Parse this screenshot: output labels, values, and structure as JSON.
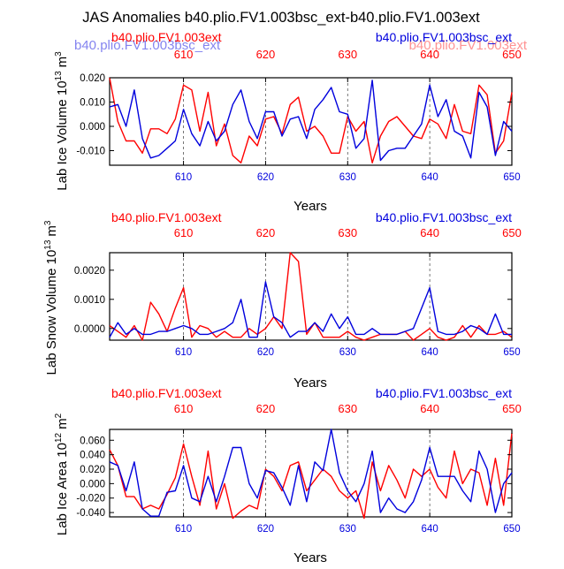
{
  "page_title": "JAS Anomalies b40.plio.FV1.003bsc_ext-b40.plio.FV1.003ext",
  "overlay_ghost_left": "b40.plio.FV1.003bsc_ext",
  "overlay_ghost_right": "b40.plio.FV1.003ext",
  "colors": {
    "red": "#ff0000",
    "blue": "#0000dd",
    "ghost_blue": "#7777ee",
    "ghost_red": "#ff8888"
  },
  "chart_data": [
    {
      "type": "line",
      "ylabel": "Lab Ice Volume 10^13 m^3",
      "ylabel_main": "Lab Ice Volume 10",
      "ylabel_exp": "13",
      "ylabel_unit": "m",
      "ylabel_unit_exp": "3",
      "xlabel": "Years",
      "xlim": [
        601,
        650
      ],
      "ylim": [
        -0.016,
        0.02
      ],
      "yticks": [
        -0.01,
        0.0,
        0.01,
        0.02
      ],
      "ytick_labels": [
        "-0.010",
        "0.000",
        "0.010",
        "0.020"
      ],
      "xticks": [
        610,
        620,
        630,
        640,
        650
      ],
      "xtick_labels": [
        "610",
        "620",
        "630",
        "640",
        "650"
      ],
      "vlines": [
        610,
        620,
        630,
        640
      ],
      "legend_left": "b40.plio.FV1.003ext",
      "legend_right": "b40.plio.FV1.003bsc_ext",
      "series": [
        {
          "name": "b40.plio.FV1.003ext",
          "color": "#ff0000",
          "x": [
            601,
            602,
            603,
            604,
            605,
            606,
            607,
            608,
            609,
            610,
            611,
            612,
            613,
            614,
            615,
            616,
            617,
            618,
            619,
            620,
            621,
            622,
            623,
            624,
            625,
            626,
            627,
            628,
            629,
            630,
            631,
            632,
            633,
            634,
            635,
            636,
            637,
            638,
            639,
            640,
            641,
            642,
            643,
            644,
            645,
            646,
            647,
            648,
            649,
            650
          ],
          "values": [
            0.02,
            0.002,
            -0.006,
            -0.006,
            -0.011,
            -0.001,
            -0.001,
            -0.003,
            0.003,
            0.017,
            0.015,
            -0.002,
            0.014,
            -0.008,
            0.001,
            -0.012,
            -0.015,
            -0.004,
            -0.008,
            0.003,
            0.004,
            -0.003,
            0.009,
            0.012,
            -0.002,
            0.0,
            -0.004,
            -0.011,
            -0.011,
            0.004,
            -0.002,
            0.002,
            -0.015,
            -0.004,
            0.002,
            0.004,
            0.0,
            -0.004,
            -0.005,
            0.003,
            0.001,
            -0.005,
            0.009,
            -0.002,
            -0.003,
            0.017,
            0.013,
            -0.011,
            -0.006,
            0.014
          ]
        },
        {
          "name": "b40.plio.FV1.003bsc_ext",
          "color": "#0000dd",
          "x": [
            601,
            602,
            603,
            604,
            605,
            606,
            607,
            608,
            609,
            610,
            611,
            612,
            613,
            614,
            615,
            616,
            617,
            618,
            619,
            620,
            621,
            622,
            623,
            624,
            625,
            626,
            627,
            628,
            629,
            630,
            631,
            632,
            633,
            634,
            635,
            636,
            637,
            638,
            639,
            640,
            641,
            642,
            643,
            644,
            645,
            646,
            647,
            648,
            649,
            650
          ],
          "values": [
            0.008,
            0.009,
            0.0,
            0.015,
            -0.005,
            -0.013,
            -0.012,
            -0.009,
            -0.006,
            0.007,
            -0.003,
            -0.008,
            0.002,
            -0.006,
            -0.002,
            0.009,
            0.015,
            0.002,
            -0.005,
            0.006,
            0.006,
            -0.004,
            0.003,
            0.004,
            -0.005,
            0.007,
            0.011,
            0.016,
            0.006,
            0.005,
            -0.009,
            -0.005,
            0.019,
            -0.014,
            -0.01,
            -0.009,
            -0.009,
            -0.004,
            0.001,
            0.017,
            0.004,
            0.011,
            -0.002,
            -0.004,
            -0.013,
            0.014,
            0.008,
            -0.012,
            0.002,
            -0.002
          ]
        }
      ]
    },
    {
      "type": "line",
      "ylabel": "Lab Snow Volume 10^13 m^3",
      "ylabel_main": "Lab Snow Volume 10",
      "ylabel_exp": "13",
      "ylabel_unit": "m",
      "ylabel_unit_exp": "3",
      "xlabel": "Years",
      "xlim": [
        601,
        650
      ],
      "ylim": [
        -0.0004,
        0.0026
      ],
      "yticks": [
        0.0,
        0.001,
        0.002
      ],
      "ytick_labels": [
        "0.0000",
        "0.0010",
        "0.0020"
      ],
      "xticks": [
        610,
        620,
        630,
        640,
        650
      ],
      "xtick_labels": [
        "610",
        "620",
        "630",
        "640",
        "650"
      ],
      "vlines": [
        610,
        620,
        630,
        640
      ],
      "legend_left": "b40.plio.FV1.003ext",
      "legend_right": "b40.plio.FV1.003bsc_ext",
      "series": [
        {
          "name": "b40.plio.FV1.003ext",
          "color": "#ff0000",
          "x": [
            601,
            602,
            603,
            604,
            605,
            606,
            607,
            608,
            609,
            610,
            611,
            612,
            613,
            614,
            615,
            616,
            617,
            618,
            619,
            620,
            621,
            622,
            623,
            624,
            625,
            626,
            627,
            628,
            629,
            630,
            631,
            632,
            633,
            634,
            635,
            636,
            637,
            638,
            639,
            640,
            641,
            642,
            643,
            644,
            645,
            646,
            647,
            648,
            649,
            650
          ],
          "values": [
            0.0001,
            -0.0001,
            -0.0003,
            0.0001,
            -0.0004,
            0.0009,
            0.0005,
            -0.0001,
            0.0007,
            0.0014,
            -0.0003,
            0.0001,
            0.0,
            -0.0003,
            -0.0001,
            -0.0003,
            -0.0003,
            0.0,
            -0.0002,
            0.0,
            0.0004,
            0.0,
            0.0026,
            0.0023,
            -0.0002,
            0.0002,
            -0.0003,
            -0.0003,
            -0.0003,
            -0.0001,
            -0.0003,
            -0.0004,
            -0.0003,
            -0.0002,
            -0.0002,
            -0.0002,
            -0.0001,
            -0.0004,
            -0.0002,
            0.0,
            -0.0003,
            -0.0004,
            -0.0003,
            0.0001,
            -0.0003,
            0.0001,
            -0.0002,
            -0.0002,
            -0.0001,
            -0.0003
          ]
        },
        {
          "name": "b40.plio.FV1.003bsc_ext",
          "color": "#0000dd",
          "x": [
            601,
            602,
            603,
            604,
            605,
            606,
            607,
            608,
            609,
            610,
            611,
            612,
            613,
            614,
            615,
            616,
            617,
            618,
            619,
            620,
            621,
            622,
            623,
            624,
            625,
            626,
            627,
            628,
            629,
            630,
            631,
            632,
            633,
            634,
            635,
            636,
            637,
            638,
            639,
            640,
            641,
            642,
            643,
            644,
            645,
            646,
            647,
            648,
            649,
            650
          ],
          "values": [
            -0.0003,
            0.0002,
            -0.0002,
            0.0,
            -0.0002,
            -0.0002,
            -0.0001,
            -0.0001,
            0.0,
            0.0001,
            0.0,
            -0.0002,
            -0.0002,
            -0.0001,
            0.0,
            0.0002,
            0.001,
            -0.0003,
            -0.0003,
            0.0016,
            0.0004,
            0.0002,
            -0.0003,
            -0.0001,
            -0.0001,
            0.0002,
            -0.0001,
            0.0005,
            0.0,
            0.0004,
            -0.0002,
            -0.0002,
            0.0,
            -0.0002,
            -0.0002,
            -0.0002,
            -0.0001,
            0.0,
            0.0007,
            0.0014,
            -0.0001,
            -0.0002,
            -0.0002,
            -0.0001,
            0.0001,
            0.0,
            -0.0002,
            0.0005,
            -0.0002,
            -0.0002
          ]
        }
      ]
    },
    {
      "type": "line",
      "ylabel": "Lab Ice Area 10^12 m^2",
      "ylabel_main": "Lab Ice Area 10",
      "ylabel_exp": "12",
      "ylabel_unit": "m",
      "ylabel_unit_exp": "2",
      "xlabel": "Years",
      "xlim": [
        601,
        650
      ],
      "ylim": [
        -0.046,
        0.075
      ],
      "yticks": [
        -0.04,
        -0.02,
        0.0,
        0.02,
        0.04,
        0.06
      ],
      "ytick_labels": [
        "-0.040",
        "-0.020",
        "0.000",
        "0.020",
        "0.040",
        "0.060"
      ],
      "xticks": [
        610,
        620,
        630,
        640,
        650
      ],
      "xtick_labels": [
        "610",
        "620",
        "630",
        "640",
        "650"
      ],
      "vlines": [
        610,
        620,
        630,
        640
      ],
      "legend_left": "b40.plio.FV1.003ext",
      "legend_right": "b40.plio.FV1.003bsc_ext",
      "series": [
        {
          "name": "b40.plio.FV1.003ext",
          "color": "#ff0000",
          "x": [
            601,
            602,
            603,
            604,
            605,
            606,
            607,
            608,
            609,
            610,
            611,
            612,
            613,
            614,
            615,
            616,
            617,
            618,
            619,
            620,
            621,
            622,
            623,
            624,
            625,
            626,
            627,
            628,
            629,
            630,
            631,
            632,
            633,
            634,
            635,
            636,
            637,
            638,
            639,
            640,
            641,
            642,
            643,
            644,
            645,
            646,
            647,
            648,
            649,
            650
          ],
          "values": [
            0.047,
            0.025,
            -0.018,
            -0.018,
            -0.035,
            -0.03,
            -0.035,
            -0.015,
            0.008,
            0.055,
            0.01,
            -0.03,
            0.045,
            -0.035,
            0.0,
            -0.048,
            -0.038,
            -0.03,
            -0.035,
            0.02,
            0.01,
            -0.01,
            0.025,
            0.03,
            -0.01,
            0.005,
            0.02,
            0.01,
            -0.01,
            -0.02,
            -0.01,
            -0.048,
            0.03,
            -0.01,
            0.025,
            0.005,
            -0.02,
            0.02,
            0.01,
            0.02,
            -0.005,
            -0.02,
            0.045,
            0.0,
            0.02,
            0.015,
            -0.03,
            0.035,
            -0.03,
            0.07
          ]
        },
        {
          "name": "b40.plio.FV1.003bsc_ext",
          "color": "#0000dd",
          "x": [
            601,
            602,
            603,
            604,
            605,
            606,
            607,
            608,
            609,
            610,
            611,
            612,
            613,
            614,
            615,
            616,
            617,
            618,
            619,
            620,
            621,
            622,
            623,
            624,
            625,
            626,
            627,
            628,
            629,
            630,
            631,
            632,
            633,
            634,
            635,
            636,
            637,
            638,
            639,
            640,
            641,
            642,
            643,
            644,
            645,
            646,
            647,
            648,
            649,
            650
          ],
          "values": [
            0.03,
            0.025,
            -0.01,
            0.03,
            -0.035,
            -0.045,
            -0.045,
            -0.012,
            -0.01,
            0.025,
            -0.02,
            -0.025,
            0.01,
            -0.025,
            0.01,
            0.05,
            0.05,
            0.0,
            -0.02,
            0.018,
            0.015,
            -0.005,
            -0.03,
            0.025,
            -0.025,
            0.03,
            0.018,
            0.075,
            0.015,
            -0.01,
            -0.025,
            0.0,
            0.045,
            -0.04,
            -0.02,
            -0.035,
            -0.04,
            -0.025,
            0.005,
            0.05,
            0.01,
            0.01,
            0.01,
            -0.01,
            -0.025,
            0.045,
            0.02,
            -0.04,
            0.0,
            0.015
          ]
        }
      ]
    }
  ]
}
